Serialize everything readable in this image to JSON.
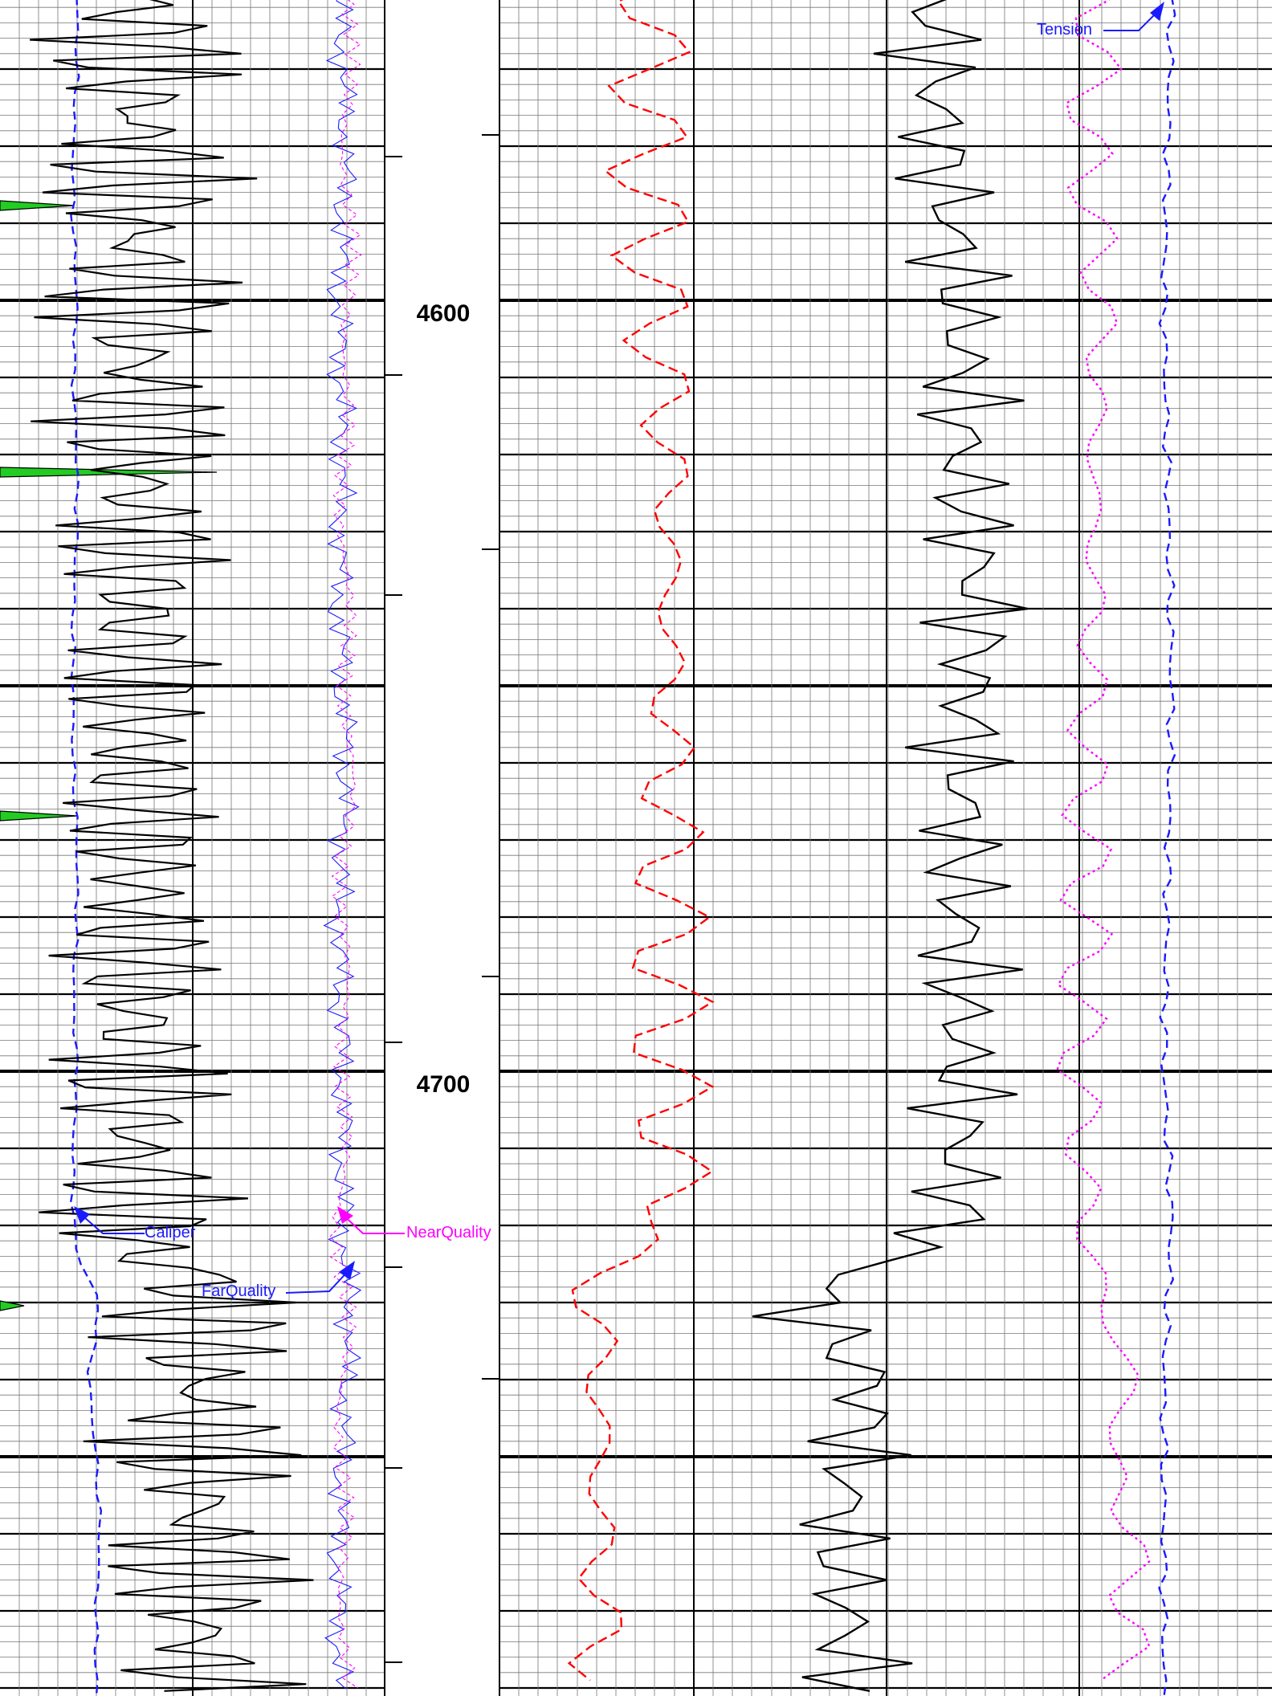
{
  "chart_data": {
    "type": "line",
    "title": "",
    "y_axis": {
      "quantity": "depth",
      "range": [
        4560,
        4780
      ],
      "inverted": true,
      "major_tick_step": 50,
      "labeled_ticks": [
        4600,
        4700
      ]
    },
    "depth_labels": [
      "4600",
      "4700"
    ],
    "colors": {
      "grid_major": "#000000",
      "grid_minor": "#777777",
      "caliper": "#1a1aff",
      "gamma": "#000000",
      "near_quality": "#ff00ff",
      "far_quality": "#1a1aff",
      "left_dashed": "#ff0000",
      "right_black": "#000000",
      "right_dotted": "#ff00ff",
      "tension": "#1a1aff",
      "shading": "#22cc22"
    },
    "series": [
      {
        "name": "Caliper",
        "track": "left",
        "style": "blue-dashed",
        "depth": [
          4560,
          4570,
          4580,
          4590,
          4600,
          4610,
          4620,
          4630,
          4640,
          4650,
          4660,
          4670,
          4680,
          4690,
          4700,
          4710,
          4720,
          4725,
          4730,
          4740,
          4750,
          4760,
          4770,
          4780
        ],
        "x_frac": [
          0.2,
          0.2,
          0.19,
          0.19,
          0.2,
          0.19,
          0.2,
          0.2,
          0.19,
          0.19,
          0.19,
          0.2,
          0.2,
          0.19,
          0.2,
          0.19,
          0.19,
          0.21,
          0.26,
          0.23,
          0.25,
          0.26,
          0.25,
          0.25
        ]
      },
      {
        "name": "FarQuality",
        "track": "left",
        "style": "blue-thin",
        "depth": [
          4560,
          4580,
          4600,
          4620,
          4640,
          4660,
          4680,
          4700,
          4720,
          4730,
          4740,
          4760,
          4780
        ],
        "x_frac": [
          0.88,
          0.9,
          0.88,
          0.89,
          0.88,
          0.9,
          0.88,
          0.89,
          0.89,
          0.91,
          0.9,
          0.88,
          0.88
        ]
      },
      {
        "name": "NearQuality",
        "track": "left",
        "style": "magenta-thin",
        "depth": [
          4560,
          4580,
          4600,
          4620,
          4640,
          4660,
          4680,
          4700,
          4720,
          4730,
          4740,
          4760,
          4780
        ],
        "x_frac": [
          0.91,
          0.9,
          0.91,
          0.89,
          0.9,
          0.91,
          0.89,
          0.9,
          0.88,
          0.9,
          0.89,
          0.89,
          0.9
        ]
      },
      {
        "name": "Tension",
        "track": "right",
        "style": "blue-dashed",
        "depth": [
          4560,
          4600,
          4650,
          4700,
          4720,
          4740,
          4760,
          4780
        ],
        "x_frac": [
          0.87,
          0.86,
          0.87,
          0.86,
          0.87,
          0.86,
          0.86,
          0.86
        ]
      },
      {
        "name": "",
        "track": "right",
        "style": "red-dashed",
        "depth": [
          4560,
          4580,
          4600,
          4620,
          4640,
          4660,
          4680,
          4700,
          4720,
          4725,
          4740,
          4760,
          4780
        ],
        "x_frac": [
          0.2,
          0.19,
          0.2,
          0.22,
          0.22,
          0.22,
          0.22,
          0.22,
          0.23,
          0.12,
          0.13,
          0.13,
          0.13
        ]
      },
      {
        "name": "",
        "track": "right",
        "style": "magenta-dotted",
        "depth": [
          4560,
          4580,
          4600,
          4620,
          4640,
          4660,
          4680,
          4700,
          4720,
          4730,
          4740,
          4750,
          4760,
          4780
        ],
        "x_frac": [
          0.78,
          0.76,
          0.78,
          0.77,
          0.77,
          0.76,
          0.76,
          0.75,
          0.76,
          0.78,
          0.82,
          0.79,
          0.82,
          0.81
        ]
      },
      {
        "name": "",
        "track": "right",
        "style": "black-solid",
        "depth": [
          4560,
          4580,
          4600,
          4620,
          4640,
          4660,
          4680,
          4700,
          4720,
          4730,
          4740,
          4760,
          4780
        ],
        "x_frac": [
          0.56,
          0.57,
          0.6,
          0.6,
          0.62,
          0.6,
          0.6,
          0.6,
          0.59,
          0.39,
          0.48,
          0.44,
          0.46
        ]
      }
    ]
  }
}
